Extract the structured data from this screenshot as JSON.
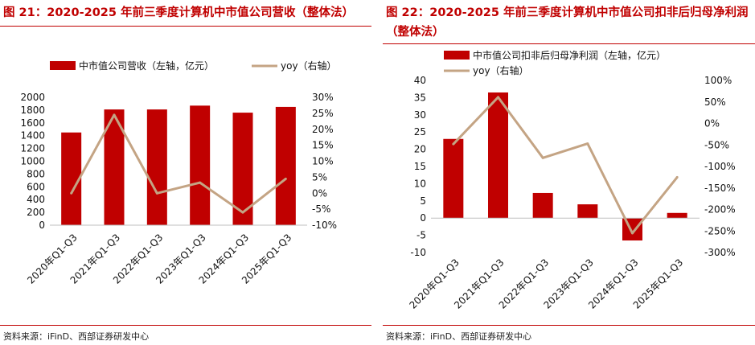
{
  "chart_data": [
    {
      "type": "bar+line",
      "title_prefix": "图 21：",
      "title": "2020-2025 年前三季度计算机中市值公司营收（整体法）",
      "source": "资料来源：iFinD、西部证券研发中心",
      "categories": [
        "2020年Q1-Q3",
        "2021年Q1-Q3",
        "2022年Q1-Q3",
        "2023年Q1-Q3",
        "2024年Q1-Q3",
        "2025年Q1-Q3"
      ],
      "series": [
        {
          "name": "中市值公司营收（左轴，亿元）",
          "type": "bar",
          "axis": "left",
          "color": "#c00000",
          "values": [
            1450,
            1810,
            1810,
            1870,
            1760,
            1850
          ]
        },
        {
          "name": "yoy（右轴）",
          "type": "line",
          "axis": "right",
          "color": "#c4a484",
          "values": [
            0.0,
            24.5,
            0.0,
            3.3,
            -6.0,
            4.5
          ]
        }
      ],
      "yleft": {
        "min": 0,
        "max": 2000,
        "step": 200,
        "ticks": [
          "0",
          "200",
          "400",
          "600",
          "800",
          "1000",
          "1200",
          "1400",
          "1600",
          "1800",
          "2000"
        ]
      },
      "yright": {
        "min": -10,
        "max": 30,
        "step": 5,
        "ticks": [
          "-10%",
          "-5%",
          "0%",
          "5%",
          "10%",
          "15%",
          "20%",
          "25%",
          "30%"
        ]
      },
      "legend_position": "top"
    },
    {
      "type": "bar+line",
      "title_prefix": "图 22：",
      "title": "2020-2025 年前三季度计算机中市值公司扣非后归母净利润（整体法）",
      "source": "资料来源：iFinD、西部证券研发中心",
      "categories": [
        "2020年Q1-Q3",
        "2021年Q1-Q3",
        "2022年Q1-Q3",
        "2023年Q1-Q3",
        "2024年Q1-Q3",
        "2025年Q1-Q3"
      ],
      "series": [
        {
          "name": "中市值公司扣非后归母净利润（左轴，亿元）",
          "type": "bar",
          "axis": "left",
          "color": "#c00000",
          "values": [
            23,
            36.5,
            7.3,
            4.0,
            -6.5,
            1.5
          ]
        },
        {
          "name": "yoy（右轴）",
          "type": "line",
          "axis": "right",
          "color": "#c4a484",
          "values": [
            -48,
            61,
            -80,
            -47,
            -255,
            -125
          ]
        }
      ],
      "yleft": {
        "min": -10,
        "max": 40,
        "step": 5,
        "ticks": [
          "-10",
          "-5",
          "0",
          "5",
          "10",
          "15",
          "20",
          "25",
          "30",
          "35",
          "40"
        ]
      },
      "yright": {
        "min": -300,
        "max": 100,
        "step": 50,
        "ticks": [
          "-300%",
          "-250%",
          "-200%",
          "-150%",
          "-100%",
          "-50%",
          "0%",
          "50%",
          "100%"
        ]
      },
      "legend_position": "top-left"
    }
  ]
}
